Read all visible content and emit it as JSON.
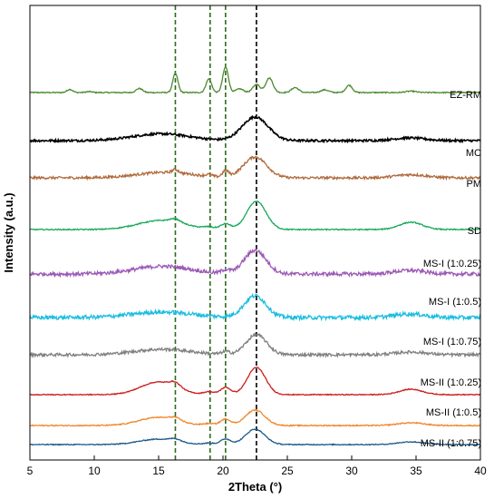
{
  "chart_data": {
    "type": "line",
    "xlabel": "2Theta (°)",
    "ylabel": "Intensity (a.u.)",
    "xlim": [
      5,
      40
    ],
    "x_ticks": [
      5,
      10,
      15,
      20,
      25,
      30,
      35,
      40
    ],
    "y_tick_labels": "none",
    "grid": false,
    "legend": "series labels printed at right end of each trace",
    "reference_lines": [
      {
        "x": 16.3,
        "color": "#2e6b1f",
        "style": "dashed"
      },
      {
        "x": 19.0,
        "color": "#2e6b1f",
        "style": "dashed"
      },
      {
        "x": 20.2,
        "color": "#2e6b1f",
        "style": "dashed"
      },
      {
        "x": 22.6,
        "color": "#000000",
        "style": "dashed"
      }
    ],
    "series": [
      {
        "name": "EZ-RM",
        "color": "#4a8a2f",
        "noise": 0.6,
        "baseline": 0.0,
        "peaks": [
          [
            8.1,
            3.5,
            0.22
          ],
          [
            9.6,
            1.0,
            0.25
          ],
          [
            13.5,
            4.5,
            0.25
          ],
          [
            16.3,
            21.0,
            0.2
          ],
          [
            18.9,
            15.0,
            0.22
          ],
          [
            20.2,
            28.0,
            0.22
          ],
          [
            21.3,
            4.0,
            0.3
          ],
          [
            22.6,
            9.0,
            0.28
          ],
          [
            23.6,
            16.0,
            0.28
          ],
          [
            25.6,
            5.5,
            0.28
          ],
          [
            27.9,
            3.0,
            0.3
          ],
          [
            29.8,
            8.0,
            0.25
          ],
          [
            34.6,
            1.5,
            0.4
          ]
        ]
      },
      {
        "name": "MC",
        "color": "#000000",
        "noise": 1.2,
        "baseline": 0.0,
        "peaks": [
          [
            15.2,
            7.5,
            2.2
          ],
          [
            22.5,
            26.0,
            1.0
          ],
          [
            34.5,
            3.0,
            1.2
          ]
        ]
      },
      {
        "name": "PM",
        "color": "#b06a3c",
        "noise": 1.4,
        "baseline": 0.0,
        "peaks": [
          [
            15.5,
            6.0,
            2.2
          ],
          [
            16.3,
            3.5,
            0.25
          ],
          [
            18.9,
            2.0,
            0.25
          ],
          [
            20.2,
            6.5,
            0.25
          ],
          [
            22.5,
            23.0,
            0.9
          ],
          [
            34.6,
            3.5,
            1.2
          ]
        ]
      },
      {
        "name": "SD",
        "color": "#18a85a",
        "noise": 0.6,
        "baseline": 0.0,
        "peaks": [
          [
            15.2,
            10.0,
            1.8
          ],
          [
            16.3,
            3.5,
            0.4
          ],
          [
            18.9,
            2.0,
            0.4
          ],
          [
            20.2,
            6.0,
            0.4
          ],
          [
            22.6,
            31.0,
            0.75
          ],
          [
            34.6,
            8.0,
            0.9
          ]
        ]
      },
      {
        "name": "MS-I (1:0.25)",
        "color": "#9b59b6",
        "noise": 2.0,
        "baseline": 0.0,
        "peaks": [
          [
            15.3,
            8.5,
            2.2
          ],
          [
            20.2,
            4.0,
            0.3
          ],
          [
            22.5,
            26.0,
            0.85
          ],
          [
            34.5,
            4.0,
            1.2
          ]
        ]
      },
      {
        "name": "MS-I (1:0.5)",
        "color": "#1bbde0",
        "noise": 2.2,
        "baseline": 0.0,
        "peaks": [
          [
            15.3,
            6.0,
            2.4
          ],
          [
            22.5,
            24.0,
            0.85
          ],
          [
            34.5,
            4.0,
            1.2
          ]
        ]
      },
      {
        "name": "MS-I (1:0.75)",
        "color": "#808080",
        "noise": 1.6,
        "baseline": 0.0,
        "peaks": [
          [
            15.3,
            6.0,
            2.2
          ],
          [
            20.2,
            3.0,
            0.3
          ],
          [
            22.6,
            22.0,
            0.8
          ],
          [
            34.6,
            3.0,
            1.2
          ]
        ]
      },
      {
        "name": "MS-II (1:0.25)",
        "color": "#cc1f1f",
        "noise": 0.5,
        "baseline": 0.0,
        "peaks": [
          [
            15.0,
            14.0,
            1.4
          ],
          [
            16.3,
            5.0,
            0.4
          ],
          [
            18.9,
            3.0,
            0.4
          ],
          [
            20.2,
            8.0,
            0.4
          ],
          [
            22.6,
            30.0,
            0.7
          ],
          [
            34.6,
            6.0,
            0.9
          ]
        ]
      },
      {
        "name": "MS-II (1:0.5)",
        "color": "#f0862c",
        "noise": 0.6,
        "baseline": 0.0,
        "peaks": [
          [
            15.0,
            9.0,
            1.5
          ],
          [
            16.3,
            3.0,
            0.4
          ],
          [
            18.9,
            2.0,
            0.4
          ],
          [
            20.2,
            7.0,
            0.4
          ],
          [
            22.5,
            17.0,
            0.75
          ],
          [
            34.6,
            3.0,
            1.0
          ]
        ]
      },
      {
        "name": "MS-II (1:0.75)",
        "color": "#1e5a8a",
        "noise": 0.5,
        "baseline": 0.0,
        "peaks": [
          [
            15.0,
            6.0,
            1.5
          ],
          [
            16.3,
            2.5,
            0.4
          ],
          [
            18.9,
            1.5,
            0.4
          ],
          [
            20.2,
            6.0,
            0.4
          ],
          [
            22.5,
            17.0,
            0.75
          ],
          [
            34.6,
            3.0,
            1.0
          ]
        ]
      }
    ]
  }
}
